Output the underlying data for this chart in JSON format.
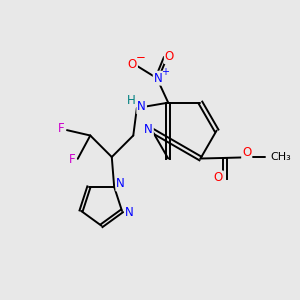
{
  "background_color": "#e8e8e8",
  "bond_color": "#000000",
  "atom_colors": {
    "N": "#0000ff",
    "O": "#ff0000",
    "F": "#cc00cc",
    "H": "#008080",
    "C": "#000000"
  },
  "figsize": [
    3.0,
    3.0
  ],
  "dpi": 100,
  "lw": 1.4,
  "fs": 8.5
}
